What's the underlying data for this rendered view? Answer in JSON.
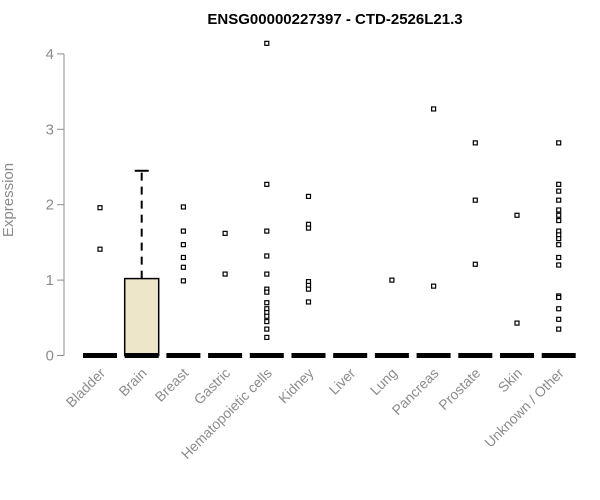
{
  "chart_data": {
    "type": "box",
    "title": "ENSG00000227397 - CTD-2526L21.3",
    "xlabel": "",
    "ylabel": "Expression",
    "ylim": [
      0,
      4.2
    ],
    "yticks": [
      0,
      1,
      2,
      3,
      4
    ],
    "grid": false,
    "colors": {
      "box_fill": "#ede6c8",
      "box_stroke": "#000000",
      "axis": "#8c8c8c",
      "points": "#000000"
    },
    "categories": [
      "Bladder",
      "Brain",
      "Breast",
      "Gastric",
      "Hematopoietic cells",
      "Kidney",
      "Liver",
      "Lung",
      "Pancreas",
      "Prostate",
      "Skin",
      "Unknown / Other"
    ],
    "boxes": [
      {
        "category": "Bladder",
        "q1": 0,
        "median": 0,
        "q3": 0,
        "whisker_low": 0,
        "whisker_high": 0,
        "outliers": [
          1.96,
          1.41
        ]
      },
      {
        "category": "Brain",
        "q1": 0,
        "median": 0,
        "q3": 1.02,
        "whisker_low": 0,
        "whisker_high": 2.45,
        "outliers": []
      },
      {
        "category": "Breast",
        "q1": 0,
        "median": 0,
        "q3": 0,
        "whisker_low": 0,
        "whisker_high": 0,
        "outliers": [
          1.97,
          1.65,
          1.47,
          1.3,
          1.17,
          0.99
        ]
      },
      {
        "category": "Gastric",
        "q1": 0,
        "median": 0,
        "q3": 0,
        "whisker_low": 0,
        "whisker_high": 0,
        "outliers": [
          1.62,
          1.08
        ]
      },
      {
        "category": "Hematopoietic cells",
        "q1": 0,
        "median": 0,
        "q3": 0,
        "whisker_low": 0,
        "whisker_high": 0,
        "outliers": [
          4.14,
          2.27,
          1.65,
          1.32,
          1.08,
          0.88,
          0.84,
          0.7,
          0.62,
          0.57,
          0.52,
          0.45,
          0.35,
          0.24
        ]
      },
      {
        "category": "Kidney",
        "q1": 0,
        "median": 0,
        "q3": 0,
        "whisker_low": 0,
        "whisker_high": 0,
        "outliers": [
          2.11,
          1.74,
          1.69,
          0.98,
          0.93,
          0.88,
          0.71
        ]
      },
      {
        "category": "Liver",
        "q1": 0,
        "median": 0,
        "q3": 0,
        "whisker_low": 0,
        "whisker_high": 0,
        "outliers": []
      },
      {
        "category": "Lung",
        "q1": 0,
        "median": 0,
        "q3": 0,
        "whisker_low": 0,
        "whisker_high": 0,
        "outliers": [
          1.0
        ]
      },
      {
        "category": "Pancreas",
        "q1": 0,
        "median": 0,
        "q3": 0,
        "whisker_low": 0,
        "whisker_high": 0,
        "outliers": [
          3.27,
          0.92
        ]
      },
      {
        "category": "Prostate",
        "q1": 0,
        "median": 0,
        "q3": 0,
        "whisker_low": 0,
        "whisker_high": 0,
        "outliers": [
          2.82,
          2.06,
          1.21
        ]
      },
      {
        "category": "Skin",
        "q1": 0,
        "median": 0,
        "q3": 0,
        "whisker_low": 0,
        "whisker_high": 0,
        "outliers": [
          1.86,
          0.43
        ]
      },
      {
        "category": "Unknown / Other",
        "q1": 0,
        "median": 0,
        "q3": 0,
        "whisker_low": 0,
        "whisker_high": 0,
        "outliers": [
          2.82,
          2.27,
          2.18,
          2.06,
          1.93,
          1.86,
          1.79,
          1.65,
          1.6,
          1.55,
          1.47,
          1.3,
          1.2,
          0.79,
          0.77,
          0.62,
          0.48,
          0.35
        ]
      }
    ]
  }
}
